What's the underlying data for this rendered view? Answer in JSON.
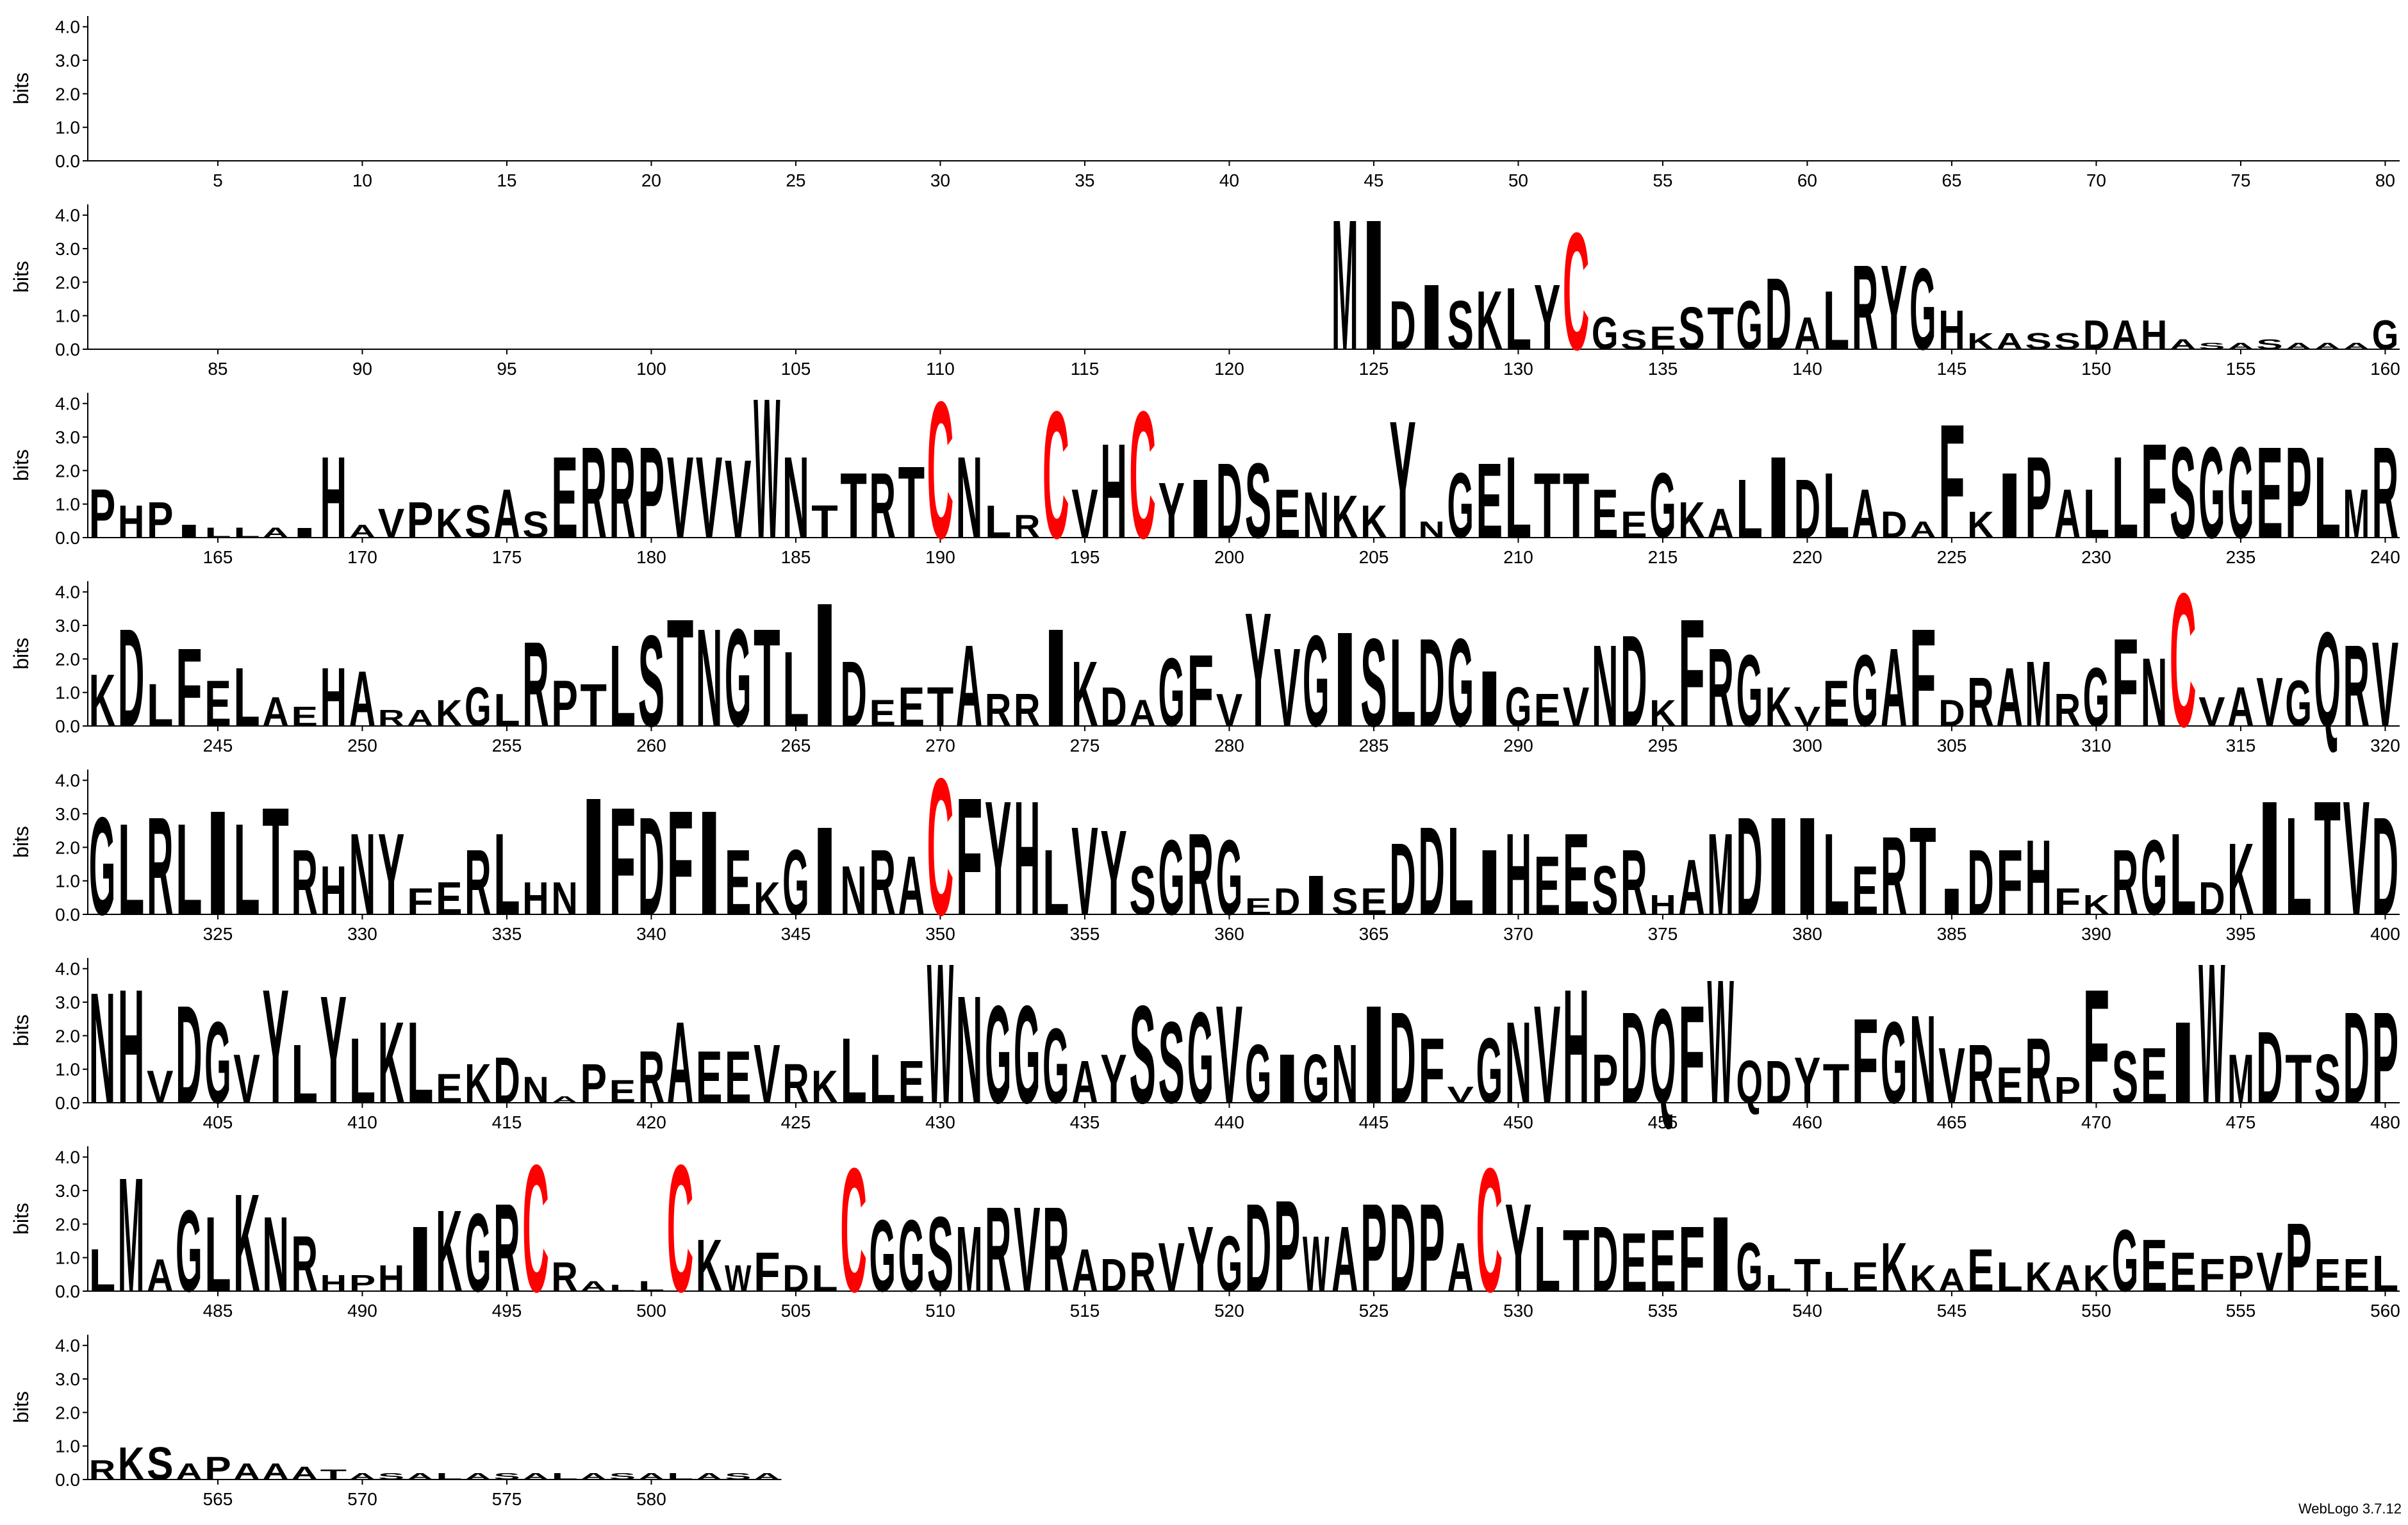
{
  "chart_data": {
    "type": "logo",
    "ylabel": "bits",
    "footer": "WebLogo 3.7.12",
    "color": "#000000",
    "letter_colors": {
      "C": "#ff0000"
    },
    "xlim": [
      0.5,
      584.5
    ],
    "xticks": [
      5,
      10,
      15,
      20,
      25,
      30,
      35,
      40,
      45,
      50,
      55,
      60,
      65,
      70,
      75,
      80,
      85,
      90,
      95,
      100,
      105,
      110,
      115,
      120,
      125,
      130,
      135,
      140,
      145,
      150,
      155,
      160,
      165,
      170,
      175,
      180,
      185,
      190,
      195,
      200,
      205,
      210,
      215,
      220,
      225,
      230,
      235,
      240,
      245,
      250,
      255,
      260,
      265,
      270,
      275,
      280,
      285,
      290,
      295,
      300,
      305,
      310,
      315,
      320,
      325,
      330,
      335,
      340,
      345,
      350,
      355,
      360,
      365,
      370,
      375,
      380,
      385,
      390,
      395,
      400,
      405,
      410,
      415,
      420,
      425,
      430,
      435,
      440,
      445,
      450,
      455,
      460,
      465,
      470,
      475,
      480,
      485,
      490,
      495,
      500,
      505,
      510,
      515,
      520,
      525,
      530,
      535,
      540,
      545,
      550,
      555,
      560,
      565,
      570,
      575,
      580
    ],
    "ylim": [
      0,
      4.32
    ],
    "yticks": [
      {
        "value": 0,
        "label": "0.0"
      },
      {
        "value": 1,
        "label": "1.0"
      },
      {
        "value": 2,
        "label": "2.0"
      },
      {
        "value": 3,
        "label": "3.0"
      },
      {
        "value": 4,
        "label": "4.0"
      }
    ],
    "x": [
      124,
      125,
      126,
      127,
      128,
      129,
      130,
      131,
      132,
      133,
      134,
      135,
      136,
      137,
      138,
      139,
      140,
      141,
      142,
      143,
      144,
      145,
      146,
      147,
      148,
      149,
      150,
      151,
      152,
      153,
      154,
      155,
      156,
      157,
      158,
      159,
      160,
      161,
      162,
      163,
      164,
      165,
      166,
      167,
      168,
      169,
      170,
      171,
      172,
      173,
      174,
      175,
      176,
      177,
      178,
      179,
      180,
      181,
      182,
      183,
      184,
      185,
      186,
      187,
      188,
      189,
      190,
      191,
      192,
      193,
      194,
      195,
      196,
      197,
      198,
      199,
      200,
      201,
      202,
      203,
      204,
      205,
      206,
      207,
      208,
      209,
      210,
      211,
      212,
      213,
      214,
      215,
      216,
      217,
      218,
      219,
      220,
      221,
      222,
      223,
      224,
      225,
      226,
      227,
      228,
      229,
      230,
      231,
      232,
      233,
      234,
      235,
      236,
      237,
      238,
      239,
      240,
      241,
      242,
      243,
      244,
      245,
      246,
      247,
      248,
      249,
      250,
      251,
      252,
      253,
      254,
      255,
      256,
      257,
      258,
      259,
      260,
      261,
      262,
      263,
      264,
      265,
      266,
      267,
      268,
      269,
      270,
      271,
      272,
      273,
      274,
      275,
      276,
      277,
      278,
      279,
      280,
      281,
      282,
      283,
      284,
      285,
      286,
      287,
      288,
      289,
      290,
      291,
      292,
      293,
      294,
      295,
      296,
      297,
      298,
      299,
      300,
      301,
      302,
      303,
      304,
      305,
      306,
      307,
      308,
      309,
      310,
      311,
      312,
      313,
      314,
      315,
      316,
      317,
      318,
      319,
      320,
      321,
      322,
      323,
      324,
      325,
      326,
      327,
      328,
      329,
      330,
      331,
      332,
      333,
      334,
      335,
      336,
      337,
      338,
      339,
      340,
      341,
      342,
      343,
      344,
      345,
      346,
      347,
      348,
      349,
      350,
      351,
      352,
      353,
      354,
      355,
      356,
      357,
      358,
      359,
      360,
      361,
      362,
      363,
      364,
      365,
      366,
      367,
      368,
      369,
      370,
      371,
      372,
      373,
      374,
      375,
      376,
      377,
      378,
      379,
      380,
      381,
      382,
      383,
      384,
      385,
      386,
      387,
      388,
      389,
      390,
      391,
      392,
      393,
      394,
      395,
      396,
      397,
      398,
      399,
      400,
      401,
      402,
      403,
      404,
      405,
      406,
      407,
      408,
      409,
      410,
      411,
      412,
      413,
      414,
      415,
      416,
      417,
      418,
      419,
      420,
      421,
      422,
      423,
      424,
      425,
      426,
      427,
      428,
      429,
      430,
      431,
      432,
      433,
      434,
      435,
      436,
      437,
      438,
      439,
      440,
      441,
      442,
      443,
      444,
      445,
      446,
      447,
      448,
      449,
      450,
      451,
      452,
      453,
      454,
      455,
      456,
      457,
      458,
      459,
      460,
      461,
      462,
      463,
      464,
      465,
      466,
      467,
      468,
      469,
      470,
      471,
      472,
      473,
      474,
      475,
      476,
      477,
      478,
      479,
      480,
      481,
      482,
      483,
      484,
      485,
      486,
      487,
      488,
      489,
      490,
      491,
      492,
      493,
      494,
      495,
      496,
      497,
      498,
      499,
      500,
      501,
      502,
      503,
      504,
      505,
      506,
      507,
      508,
      509,
      510,
      511,
      512,
      513,
      514,
      515,
      516,
      517,
      518,
      519,
      520,
      521,
      522,
      523,
      524,
      525,
      526,
      527,
      528,
      529,
      530,
      531,
      532,
      533,
      534,
      535,
      536,
      537,
      538,
      539,
      540,
      541,
      542,
      543,
      544,
      545,
      546,
      547,
      548,
      549,
      550,
      551,
      552,
      553,
      554,
      555,
      556,
      557,
      558,
      559,
      560,
      561,
      562,
      563,
      564,
      565,
      566,
      567,
      568,
      569,
      570,
      571,
      572,
      573,
      574,
      575,
      576,
      577,
      578,
      579,
      580,
      581,
      582,
      583,
      584
    ],
    "letters": [
      "M",
      "I",
      "D",
      "I",
      "S",
      "K",
      "L",
      "Y",
      "C",
      "G",
      "S",
      "E",
      "S",
      "T",
      "G",
      "D",
      "A",
      "L",
      "R",
      "Y",
      "G",
      "H",
      "K",
      "A",
      "S",
      "S",
      "D",
      "A",
      "H",
      "A",
      "S",
      "A",
      "S",
      "A",
      "A",
      "A",
      "G",
      "P",
      "H",
      "P",
      "I",
      "L",
      "L",
      "A",
      "I",
      "H",
      "A",
      "V",
      "P",
      "K",
      "S",
      "A",
      "S",
      "E",
      "R",
      "R",
      "P",
      "V",
      "V",
      "V",
      "W",
      "N",
      "T",
      "T",
      "R",
      "T",
      "C",
      "N",
      "L",
      "R",
      "C",
      "V",
      "H",
      "C",
      "Y",
      "I",
      "D",
      "S",
      "E",
      "N",
      "K",
      "K",
      "Y",
      "N",
      "G",
      "E",
      "L",
      "T",
      "T",
      "E",
      "E",
      "G",
      "K",
      "A",
      "L",
      "I",
      "D",
      "L",
      "A",
      "D",
      "A",
      "F",
      "K",
      "I",
      "P",
      "A",
      "L",
      "L",
      "F",
      "S",
      "G",
      "G",
      "E",
      "P",
      "L",
      "M",
      "R",
      "K",
      "D",
      "L",
      "F",
      "E",
      "L",
      "A",
      "E",
      "H",
      "A",
      "R",
      "A",
      "K",
      "G",
      "L",
      "R",
      "P",
      "T",
      "L",
      "S",
      "T",
      "N",
      "G",
      "T",
      "L",
      "I",
      "D",
      "E",
      "E",
      "T",
      "A",
      "R",
      "R",
      "I",
      "K",
      "D",
      "A",
      "G",
      "F",
      "V",
      "Y",
      "V",
      "G",
      "I",
      "S",
      "L",
      "D",
      "G",
      "I",
      "G",
      "E",
      "V",
      "N",
      "D",
      "K",
      "F",
      "R",
      "G",
      "K",
      "V",
      "E",
      "G",
      "A",
      "F",
      "D",
      "R",
      "A",
      "M",
      "R",
      "G",
      "F",
      "N",
      "C",
      "V",
      "A",
      "V",
      "G",
      "Q",
      "R",
      "V",
      "G",
      "L",
      "R",
      "L",
      "I",
      "L",
      "T",
      "R",
      "H",
      "N",
      "Y",
      "F",
      "E",
      "R",
      "L",
      "H",
      "N",
      "I",
      "F",
      "D",
      "F",
      "I",
      "E",
      "K",
      "G",
      "I",
      "N",
      "R",
      "A",
      "C",
      "F",
      "Y",
      "H",
      "L",
      "V",
      "Y",
      "S",
      "G",
      "R",
      "G",
      "E",
      "D",
      "I",
      "S",
      "E",
      "D",
      "D",
      "L",
      "I",
      "H",
      "E",
      "E",
      "S",
      "R",
      "H",
      "A",
      "M",
      "D",
      "I",
      "I",
      "L",
      "E",
      "R",
      "T",
      "I",
      "D",
      "F",
      "H",
      "F",
      "K",
      "R",
      "G",
      "L",
      "D",
      "K",
      "I",
      "L",
      "T",
      "V",
      "D",
      "N",
      "H",
      "V",
      "D",
      "G",
      "V",
      "Y",
      "L",
      "Y",
      "L",
      "K",
      "L",
      "E",
      "K",
      "D",
      "N",
      "A",
      "P",
      "E",
      "R",
      "A",
      "E",
      "E",
      "V",
      "R",
      "K",
      "L",
      "L",
      "E",
      "W",
      "N",
      "G",
      "G",
      "G",
      "A",
      "Y",
      "S",
      "S",
      "G",
      "V",
      "G",
      "I",
      "G",
      "N",
      "I",
      "D",
      "F",
      "V",
      "G",
      "N",
      "V",
      "H",
      "P",
      "D",
      "Q",
      "F",
      "W",
      "Q",
      "D",
      "Y",
      "T",
      "F",
      "G",
      "N",
      "V",
      "R",
      "E",
      "R",
      "P",
      "F",
      "S",
      "E",
      "I",
      "W",
      "M",
      "D",
      "T",
      "S",
      "D",
      "P",
      "L",
      "M",
      "A",
      "G",
      "L",
      "K",
      "N",
      "R",
      "H",
      "P",
      "H",
      "I",
      "K",
      "G",
      "R",
      "C",
      "R",
      "A",
      "L",
      "L",
      "C",
      "K",
      "W",
      "F",
      "D",
      "L",
      "C",
      "G",
      "G",
      "S",
      "M",
      "R",
      "V",
      "R",
      "A",
      "D",
      "R",
      "V",
      "Y",
      "G",
      "D",
      "P",
      "W",
      "A",
      "P",
      "D",
      "P",
      "A",
      "C",
      "Y",
      "L",
      "T",
      "D",
      "E",
      "E",
      "F",
      "I",
      "G",
      "L",
      "T",
      "L",
      "E",
      "K",
      "K",
      "A",
      "E",
      "L",
      "K",
      "A",
      "K",
      "G",
      "E",
      "E",
      "F",
      "P",
      "V",
      "P",
      "E",
      "E",
      "L",
      "R",
      "K",
      "S",
      "A",
      "P",
      "A",
      "A",
      "A",
      "T",
      "A",
      "S",
      "A",
      "L",
      "A",
      "S",
      "A",
      "L",
      "A",
      "S",
      "A",
      "L",
      "A",
      "S",
      "A"
    ],
    "values": [
      4.0,
      4.0,
      1.5,
      2.0,
      1.5,
      1.8,
      1.9,
      2.0,
      3.6,
      1.0,
      0.6,
      0.7,
      1.3,
      1.3,
      1.5,
      2.2,
      1.0,
      1.8,
      2.6,
      2.6,
      2.5,
      1.2,
      0.5,
      0.5,
      0.5,
      0.5,
      0.9,
      0.9,
      0.9,
      0.3,
      0.2,
      0.2,
      0.3,
      0.2,
      0.2,
      0.2,
      0.9,
      1.5,
      1.0,
      1.1,
      0.4,
      0.3,
      0.3,
      0.3,
      0.3,
      2.5,
      0.4,
      0.9,
      1.1,
      0.9,
      1.0,
      1.5,
      0.8,
      2.5,
      2.8,
      2.8,
      2.8,
      2.5,
      2.5,
      2.4,
      4.3,
      2.5,
      1.0,
      2.0,
      2.0,
      2.2,
      4.2,
      2.5,
      1.0,
      0.7,
      3.9,
      1.5,
      2.9,
      3.9,
      1.7,
      1.8,
      2.3,
      2.3,
      1.5,
      1.4,
      1.3,
      1.0,
      3.6,
      0.5,
      2.0,
      2.3,
      2.5,
      2.0,
      2.0,
      1.5,
      0.8,
      2.0,
      1.1,
      0.9,
      1.8,
      2.5,
      1.8,
      2.0,
      1.5,
      0.8,
      0.5,
      3.5,
      0.8,
      2.0,
      2.5,
      1.5,
      1.5,
      2.5,
      2.9,
      2.8,
      2.8,
      2.8,
      2.8,
      2.8,
      2.5,
      1.5,
      2.8,
      1.6,
      3.0,
      1.3,
      2.4,
      1.4,
      1.8,
      0.9,
      0.6,
      1.8,
      1.7,
      0.5,
      0.5,
      0.8,
      1.2,
      1.0,
      2.6,
      1.4,
      1.3,
      2.5,
      2.8,
      3.3,
      3.0,
      3.0,
      3.0,
      2.3,
      3.8,
      2.0,
      0.8,
      1.2,
      1.2,
      2.5,
      1.0,
      1.0,
      3.0,
      2.0,
      1.2,
      0.8,
      2.1,
      2.2,
      1.0,
      3.5,
      2.4,
      2.8,
      2.9,
      2.7,
      2.7,
      2.7,
      2.7,
      1.7,
      1.2,
      1.0,
      1.2,
      2.5,
      2.8,
      0.8,
      3.3,
      2.4,
      2.2,
      1.2,
      0.6,
      1.4,
      2.2,
      2.4,
      3.0,
      0.8,
      1.5,
      1.8,
      2.0,
      1.0,
      1.8,
      2.7,
      2.1,
      4.1,
      0.9,
      1.2,
      1.5,
      1.4,
      2.9,
      2.5,
      2.6,
      3.0,
      2.8,
      3.0,
      2.8,
      3.2,
      2.8,
      3.3,
      2.0,
      1.5,
      2.5,
      2.5,
      0.8,
      1.0,
      2.0,
      2.5,
      1.0,
      1.0,
      3.6,
      3.3,
      3.0,
      3.2,
      3.2,
      2.0,
      1.0,
      2.0,
      2.7,
      1.5,
      2.0,
      1.8,
      4.2,
      3.6,
      3.5,
      3.5,
      2.0,
      2.7,
      2.6,
      1.5,
      2.3,
      2.5,
      2.3,
      0.5,
      0.8,
      1.2,
      0.8,
      0.8,
      2.2,
      2.7,
      2.7,
      2.0,
      2.5,
      1.8,
      2.5,
      1.5,
      2.0,
      0.6,
      1.7,
      2.5,
      3.0,
      3.0,
      3.0,
      2.5,
      1.5,
      2.4,
      2.7,
      0.8,
      2.0,
      2.0,
      2.3,
      0.8,
      0.6,
      2.0,
      2.3,
      2.5,
      1.0,
      2.2,
      3.5,
      3.0,
      3.5,
      3.5,
      3.0,
      3.4,
      3.5,
      1.0,
      3.0,
      2.5,
      1.5,
      3.5,
      1.8,
      3.3,
      2.0,
      2.5,
      2.5,
      0.9,
      1.2,
      1.4,
      0.8,
      0.2,
      1.2,
      0.7,
      1.6,
      2.5,
      1.6,
      1.6,
      1.8,
      1.2,
      1.0,
      2.0,
      1.5,
      1.3,
      4.3,
      3.3,
      3.0,
      3.0,
      2.3,
      1.3,
      1.5,
      3.0,
      2.5,
      2.8,
      3.0,
      1.8,
      1.5,
      1.5,
      1.8,
      3.0,
      2.8,
      2.0,
      0.5,
      2.0,
      2.5,
      3.0,
      3.5,
      1.5,
      2.8,
      2.9,
      3.0,
      3.8,
      1.3,
      1.3,
      1.4,
      1.2,
      2.6,
      2.5,
      2.7,
      1.7,
      1.8,
      1.1,
      2.0,
      0.8,
      3.5,
      1.6,
      1.7,
      2.5,
      4.3,
      1.5,
      2.2,
      1.5,
      1.5,
      2.8,
      2.8,
      1.3,
      3.5,
      1.0,
      2.5,
      2.3,
      3.0,
      2.3,
      1.7,
      0.5,
      0.5,
      0.8,
      2.0,
      2.5,
      2.4,
      2.7,
      3.9,
      0.9,
      0.3,
      0.2,
      0.3,
      3.9,
      1.6,
      0.8,
      1.2,
      0.8,
      0.8,
      3.8,
      2.2,
      2.2,
      2.3,
      2.0,
      2.6,
      2.6,
      2.6,
      1.3,
      1.0,
      1.2,
      1.5,
      2.0,
      1.7,
      2.7,
      2.8,
      1.7,
      2.0,
      2.7,
      2.7,
      2.7,
      1.5,
      3.8,
      2.7,
      2.0,
      1.9,
      2.0,
      1.8,
      1.9,
      2.0,
      2.3,
      1.5,
      0.5,
      1.0,
      0.6,
      0.9,
      1.5,
      0.8,
      0.7,
      1.3,
      0.9,
      0.9,
      0.8,
      0.8,
      1.9,
      1.6,
      1.2,
      1.0,
      1.1,
      1.2,
      2.1,
      1.0,
      1.0,
      1.1,
      0.6,
      1.0,
      1.0,
      0.5,
      0.7,
      0.5,
      0.5,
      0.4,
      0.3,
      0.2,
      0.2,
      0.2,
      0.2,
      0.2,
      0.2,
      0.2,
      0.2,
      0.2,
      0.2,
      0.2,
      0.2,
      0.2,
      0.2,
      0.2
    ]
  }
}
